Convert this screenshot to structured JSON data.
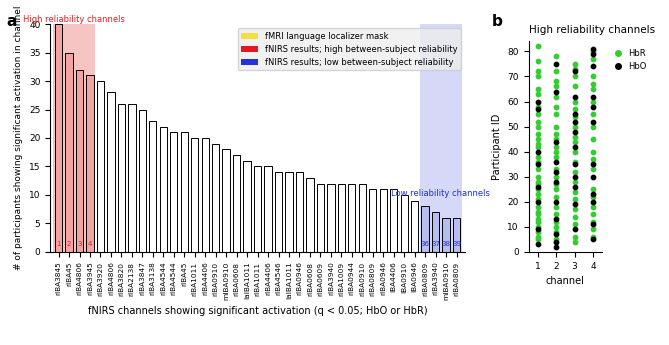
{
  "chart_data": [
    {
      "type": "bar",
      "panel": "a",
      "ylabel": "# of participants showing significant activation in channel",
      "xlabel": "fNIRS channels showing significant activation (q < 0.05; HbO or HbR)",
      "categories": [
        "rIBA3845",
        "rIBA45",
        "rIBA4806",
        "rIBA3945",
        "rIBA3920",
        "rIBA4806",
        "rIBA3820",
        "rIBA2138",
        "rIBA3847",
        "rIBA3138",
        "rIBA4544",
        "rIBA4544",
        "rIBA45",
        "rIBA1011",
        "rIBA4406",
        "rIBA0910",
        "mIBA0910",
        "rIBA0608",
        "laIBA1011",
        "rIBA1011",
        "rIBA4406",
        "rIBA4546",
        "laIBA1011",
        "rIBA0946",
        "rIBA0608",
        "rIBA0609",
        "rIBA3940",
        "rIBA1009",
        "rIBA0944",
        "rIBA0910",
        "rIBA0809",
        "rIBA0946",
        "lBA4406",
        "lBA0910",
        "lBA0946",
        "rIBA0809",
        "rIBA3940",
        "mIBA0910",
        "rIBA0809"
      ],
      "values": [
        40,
        35,
        32,
        31,
        30,
        28,
        26,
        26,
        25,
        23,
        22,
        21,
        21,
        20,
        20,
        19,
        18,
        17,
        16,
        15,
        15,
        14,
        14,
        14,
        13,
        12,
        12,
        12,
        12,
        12,
        11,
        11,
        11,
        10,
        9,
        8,
        7,
        6,
        6
      ],
      "colors": [
        "#f4a3a3",
        "#f4a3a3",
        "#f4a3a3",
        "#f4a3a3",
        "#ffffff",
        "#ffffff",
        "#ffffff",
        "#ffffff",
        "#ffffff",
        "#ffffff",
        "#ffffff",
        "#ffffff",
        "#ffffff",
        "#ffffff",
        "#ffffff",
        "#ffffff",
        "#ffffff",
        "#ffffff",
        "#ffffff",
        "#ffffff",
        "#ffffff",
        "#ffffff",
        "#ffffff",
        "#ffffff",
        "#ffffff",
        "#ffffff",
        "#ffffff",
        "#ffffff",
        "#ffffff",
        "#ffffff",
        "#ffffff",
        "#ffffff",
        "#ffffff",
        "#ffffff",
        "#ffffff",
        "#b8bdf0",
        "#b8bdf0",
        "#b8bdf0",
        "#b8bdf0"
      ],
      "bar_numbers": [
        {
          "index": 0,
          "label": "1",
          "color": "#e02020"
        },
        {
          "index": 1,
          "label": "2",
          "color": "#e02020"
        },
        {
          "index": 2,
          "label": "3",
          "color": "#e02020"
        },
        {
          "index": 3,
          "label": "4",
          "color": "#e02020"
        },
        {
          "index": 35,
          "label": "36",
          "color": "#2030d0"
        },
        {
          "index": 36,
          "label": "37",
          "color": "#2030d0"
        },
        {
          "index": 37,
          "label": "38",
          "color": "#2030d0"
        },
        {
          "index": 38,
          "label": "39",
          "color": "#2030d0"
        }
      ],
      "spans": [
        {
          "first": 0,
          "last": 3,
          "label": "High reliability channels",
          "color": "#f7c4c4",
          "text_color": "#e02020"
        },
        {
          "first": 35,
          "last": 38,
          "label": "Low reliability channels",
          "color": "#d5d8f7",
          "text_color": "#2030d0"
        }
      ],
      "legend_entries": [
        {
          "name": "fMRI language localizer mask",
          "color": "#f2e040"
        },
        {
          "name": "fNIRS results; high between-subject reliability",
          "color": "#e8141e"
        },
        {
          "name": "fNIRS results; low between-subject reliability",
          "color": "#2233dd"
        }
      ],
      "legend": "upper right",
      "ylim": [
        0,
        40
      ],
      "yticks": [
        0,
        5,
        10,
        15,
        20,
        25,
        30,
        35,
        40
      ]
    },
    {
      "type": "scatter",
      "panel": "b",
      "title": "High reliability channels",
      "xlabel": "channel",
      "ylabel": "Participant ID",
      "series": [
        {
          "name": "HbR",
          "color": "#33cc33",
          "x": [
            1,
            1,
            1,
            1,
            1,
            1,
            1,
            1,
            1,
            1,
            1,
            1,
            1,
            1,
            1,
            1,
            1,
            1,
            1,
            1,
            1,
            1,
            1,
            1,
            1,
            1,
            1,
            1,
            1,
            1,
            1,
            1,
            2,
            2,
            2,
            2,
            2,
            2,
            2,
            2,
            2,
            2,
            2,
            2,
            2,
            2,
            2,
            2,
            2,
            2,
            2,
            2,
            2,
            2,
            2,
            2,
            3,
            3,
            3,
            3,
            3,
            3,
            3,
            3,
            3,
            3,
            3,
            3,
            3,
            3,
            3,
            3,
            3,
            3,
            3,
            3,
            3,
            4,
            4,
            4,
            4,
            4,
            4,
            4,
            4,
            4,
            4,
            4,
            4,
            4,
            4,
            4,
            4,
            4,
            4,
            4
          ],
          "y": [
            82,
            76,
            72,
            70,
            65,
            63,
            58,
            55,
            52,
            50,
            47,
            45,
            43,
            42,
            38,
            36,
            33,
            30,
            28,
            27,
            25,
            23,
            21,
            18,
            16,
            15,
            13,
            12,
            10,
            8,
            6,
            5,
            78,
            72,
            68,
            66,
            62,
            58,
            55,
            50,
            47,
            45,
            42,
            40,
            38,
            33,
            30,
            27,
            25,
            22,
            18,
            15,
            12,
            10,
            8,
            5,
            75,
            73,
            70,
            66,
            60,
            57,
            54,
            50,
            46,
            44,
            40,
            36,
            32,
            28,
            24,
            21,
            17,
            14,
            11,
            6,
            4,
            80,
            77,
            70,
            67,
            65,
            60,
            55,
            50,
            45,
            40,
            37,
            33,
            25,
            22,
            18,
            15,
            12,
            9,
            6
          ]
        },
        {
          "name": "HbO",
          "color": "#000000",
          "x": [
            1,
            1,
            1,
            1,
            1,
            1,
            1,
            1,
            2,
            2,
            2,
            2,
            2,
            2,
            2,
            2,
            2,
            2,
            2,
            3,
            3,
            3,
            3,
            3,
            3,
            3,
            3,
            3,
            3,
            3,
            4,
            4,
            4,
            4,
            4,
            4,
            4,
            4,
            4,
            4,
            4,
            4
          ],
          "y": [
            60,
            57,
            40,
            35,
            26,
            20,
            9,
            3,
            75,
            64,
            44,
            36,
            32,
            20,
            13,
            7,
            4,
            2,
            28,
            72,
            62,
            55,
            52,
            48,
            42,
            35,
            30,
            26,
            19,
            9,
            81,
            79,
            74,
            62,
            58,
            52,
            35,
            30,
            23,
            20,
            11,
            5
          ]
        }
      ],
      "legend": "upper left",
      "xlim": [
        0.5,
        4.5
      ],
      "xticks": [
        1,
        2,
        3,
        4
      ],
      "ylim": [
        0,
        84
      ],
      "yticks": [
        0,
        10,
        20,
        30,
        40,
        50,
        60,
        70,
        80
      ]
    }
  ]
}
